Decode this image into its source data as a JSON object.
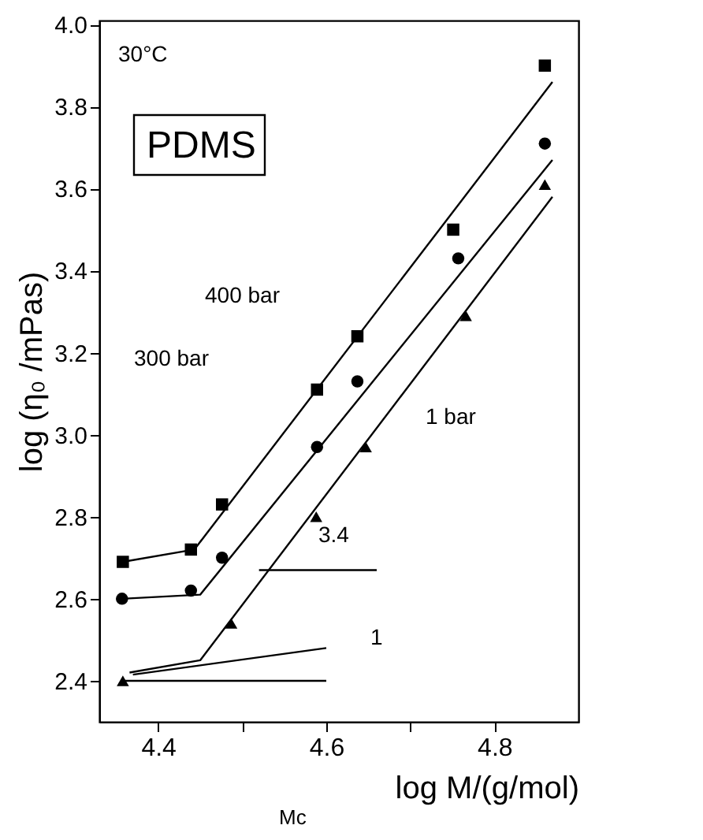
{
  "chart_data": {
    "type": "scatter",
    "xlabel": "log M/(g/mol)",
    "ylabel": "log (η₀ /mPas)",
    "xlim": [
      4.33,
      4.9
    ],
    "ylim": [
      2.3,
      4.01
    ],
    "xticks": [
      4.4,
      {
        "value": 4.5,
        "label": null
      },
      4.6,
      {
        "value": 4.7,
        "label": null
      },
      4.8
    ],
    "yticks": [
      2.4,
      2.6,
      2.8,
      {
        "value": 3.0,
        "label": "3.0"
      },
      3.2,
      3.4,
      3.6,
      3.8,
      {
        "value": 4.0,
        "label": "4.0"
      }
    ],
    "grid": false,
    "series": [
      {
        "marker": "square",
        "color": "#000000",
        "x": [
          4.358,
          4.439,
          4.476,
          4.589,
          4.637,
          4.751,
          4.86
        ],
        "values": [
          2.69,
          2.72,
          2.83,
          3.11,
          3.24,
          3.5,
          3.9
        ]
      },
      {
        "marker": "circle",
        "color": "#000000",
        "x": [
          4.357,
          4.439,
          4.476,
          4.589,
          4.637,
          4.757,
          4.86
        ],
        "values": [
          2.6,
          2.62,
          2.7,
          2.97,
          3.13,
          3.43,
          3.71
        ]
      },
      {
        "marker": "triangle",
        "color": "#000000",
        "x": [
          4.358,
          4.487,
          4.588,
          4.647,
          4.766,
          4.86
        ],
        "values": [
          2.4,
          2.54,
          2.8,
          2.97,
          3.29,
          3.61
        ]
      },
      {
        "type": "line",
        "line_style": "solid",
        "color": "#000000",
        "x": [
          4.358,
          4.443,
          4.869
        ],
        "values": [
          2.69,
          2.72,
          3.86
        ]
      },
      {
        "type": "line",
        "line_style": "solid",
        "color": "#000000",
        "x": [
          4.357,
          4.45,
          4.869
        ],
        "values": [
          2.6,
          2.61,
          3.67
        ]
      },
      {
        "type": "line",
        "line_style": "solid",
        "color": "#000000",
        "x": [
          4.366,
          4.45,
          4.869
        ],
        "values": [
          2.42,
          2.45,
          3.58
        ]
      },
      {
        "type": "line",
        "line_style": "solid",
        "color": "#000000",
        "x": [
          4.52,
          4.66
        ],
        "values": [
          2.67,
          2.67
        ]
      },
      {
        "type": "line",
        "line_style": "solid",
        "color": "#000000",
        "x": [
          4.36,
          4.6
        ],
        "values": [
          2.4,
          2.4
        ]
      },
      {
        "type": "line",
        "line_style": "solid",
        "color": "#000000",
        "x": [
          4.37,
          4.6
        ],
        "values": [
          2.415,
          2.48
        ]
      }
    ],
    "annotations": [
      "30°C",
      "PDMS",
      "400 bar",
      "300 bar",
      "1 bar",
      "3.4",
      "1",
      "Mc"
    ]
  }
}
